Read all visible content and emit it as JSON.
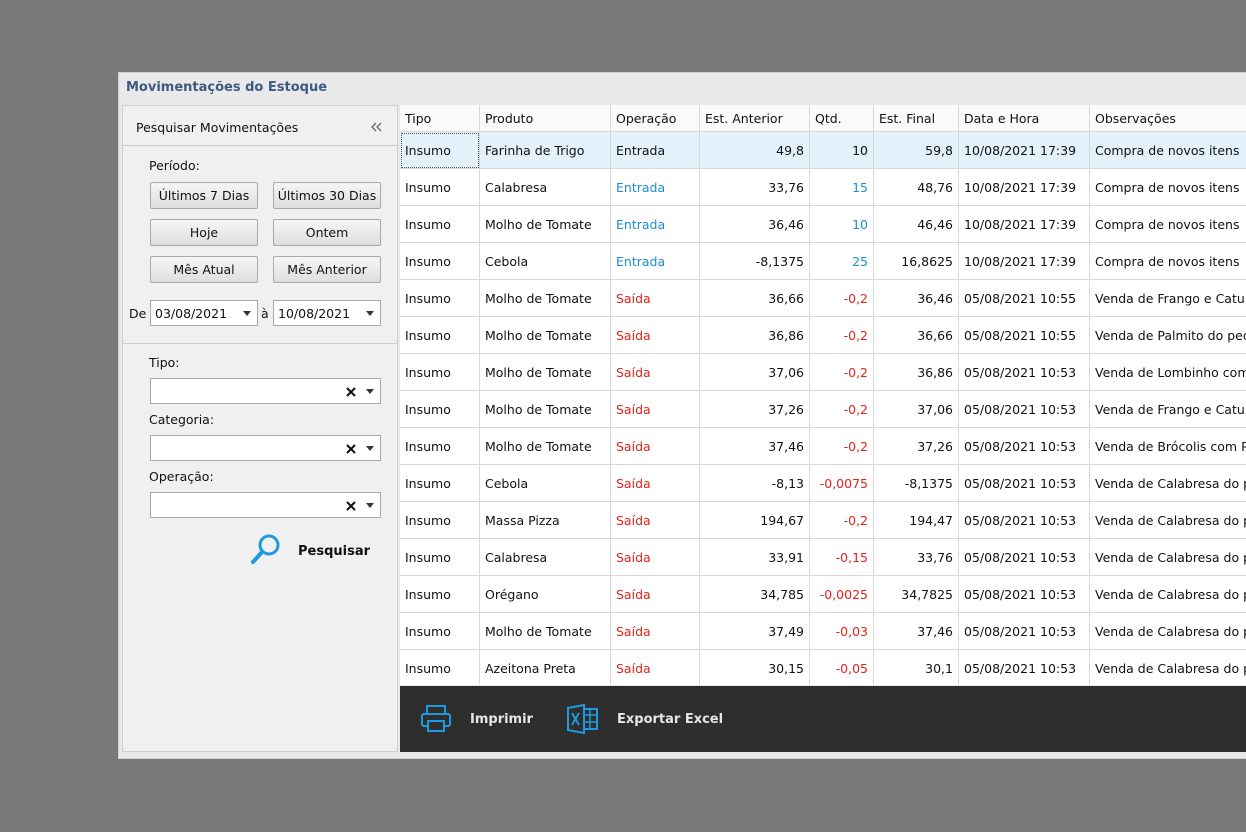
{
  "window": {
    "title": "Movimentações do Estoque"
  },
  "panel": {
    "title": "Pesquisar Movimentações",
    "period_label": "Período:",
    "buttons": [
      "Últimos 7 Dias",
      "Últimos 30 Dias",
      "Hoje",
      "Ontem",
      "Mês Atual",
      "Mês Anterior"
    ],
    "date_from_label": "De",
    "date_from": "03/08/2021",
    "date_to_label": "à",
    "date_to": "10/08/2021",
    "filters": [
      "Tipo:",
      "Categoria:",
      "Operação:"
    ],
    "search": "Pesquisar"
  },
  "table": {
    "columns": [
      "Tipo",
      "Produto",
      "Operação",
      "Est. Anterior",
      "Qtd.",
      "Est. Final",
      "Data e Hora",
      "Observações"
    ],
    "rows": [
      [
        "Insumo",
        "Farinha de Trigo",
        "Entrada",
        "49,8",
        "10",
        "59,8",
        "10/08/2021 17:39",
        "Compra de novos itens"
      ],
      [
        "Insumo",
        "Calabresa",
        "Entrada",
        "33,76",
        "15",
        "48,76",
        "10/08/2021 17:39",
        "Compra de novos itens"
      ],
      [
        "Insumo",
        "Molho de Tomate",
        "Entrada",
        "36,46",
        "10",
        "46,46",
        "10/08/2021 17:39",
        "Compra de novos itens"
      ],
      [
        "Insumo",
        "Cebola",
        "Entrada",
        "-8,1375",
        "25",
        "16,8625",
        "10/08/2021 17:39",
        "Compra de novos itens"
      ],
      [
        "Insumo",
        "Molho de Tomate",
        "Saída",
        "36,66",
        "-0,2",
        "36,46",
        "05/08/2021 10:55",
        "Venda de  Frango e Catu"
      ],
      [
        "Insumo",
        "Molho de Tomate",
        "Saída",
        "36,86",
        "-0,2",
        "36,66",
        "05/08/2021 10:55",
        "Venda de Palmito do ped"
      ],
      [
        "Insumo",
        "Molho de Tomate",
        "Saída",
        "37,06",
        "-0,2",
        "36,86",
        "05/08/2021 10:53",
        "Venda de Lombinho com"
      ],
      [
        "Insumo",
        "Molho de Tomate",
        "Saída",
        "37,26",
        "-0,2",
        "37,06",
        "05/08/2021 10:53",
        "Venda de  Frango e Catu"
      ],
      [
        "Insumo",
        "Molho de Tomate",
        "Saída",
        "37,46",
        "-0,2",
        "37,26",
        "05/08/2021 10:53",
        "Venda de Brócolis com Pa"
      ],
      [
        "Insumo",
        "Cebola",
        "Saída",
        "-8,13",
        "-0,0075",
        "-8,1375",
        "05/08/2021 10:53",
        "Venda de Calabresa do p"
      ],
      [
        "Insumo",
        "Massa Pizza",
        "Saída",
        "194,67",
        "-0,2",
        "194,47",
        "05/08/2021 10:53",
        "Venda de Calabresa do p"
      ],
      [
        "Insumo",
        "Calabresa",
        "Saída",
        "33,91",
        "-0,15",
        "33,76",
        "05/08/2021 10:53",
        "Venda de Calabresa do p"
      ],
      [
        "Insumo",
        "Orégano",
        "Saída",
        "34,785",
        "-0,0025",
        "34,7825",
        "05/08/2021 10:53",
        "Venda de Calabresa do p"
      ],
      [
        "Insumo",
        "Molho de Tomate",
        "Saída",
        "37,49",
        "-0,03",
        "37,46",
        "05/08/2021 10:53",
        "Venda de Calabresa do p"
      ],
      [
        "Insumo",
        "Azeitona Preta",
        "Saída",
        "30,15",
        "-0,05",
        "30,1",
        "05/08/2021 10:53",
        "Venda de Calabresa do p"
      ]
    ]
  },
  "footer": {
    "print": "Imprimir",
    "export": "Exportar Excel"
  }
}
